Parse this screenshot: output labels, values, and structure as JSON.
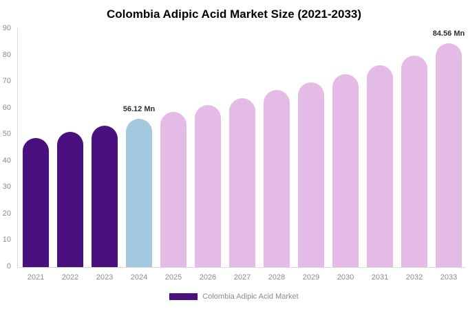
{
  "title": "Colombia Adipic Acid Market Size (2021-2033)",
  "legend": {
    "label": "Colombia Adipic Acid Market"
  },
  "colors": {
    "historical_bar": "#4B1080",
    "highlight_bar": "#A2C9DE",
    "forecast_bar": "#E3BBE6",
    "axis_line": "#D9D9D9",
    "tick_label": "#8C8C8C",
    "annotation_text": "#2F2F2F",
    "title_text": "#000000",
    "background": "#FFFFFF"
  },
  "chart_data": {
    "type": "bar",
    "title": "Colombia Adipic Acid Market Size (2021-2033)",
    "unit": "Mn",
    "categories": [
      "2021",
      "2022",
      "2023",
      "2024",
      "2025",
      "2026",
      "2027",
      "2028",
      "2029",
      "2030",
      "2031",
      "2032",
      "2033"
    ],
    "series": [
      {
        "name": "Colombia Adipic Acid Market",
        "values": [
          48.7,
          51.1,
          53.4,
          56.12,
          58.5,
          61.2,
          63.9,
          66.8,
          69.8,
          73.0,
          76.3,
          79.9,
          84.56
        ]
      }
    ],
    "bar_color_keys": [
      "historical_bar",
      "historical_bar",
      "historical_bar",
      "highlight_bar",
      "forecast_bar",
      "forecast_bar",
      "forecast_bar",
      "forecast_bar",
      "forecast_bar",
      "forecast_bar",
      "forecast_bar",
      "forecast_bar",
      "forecast_bar"
    ],
    "annotations": [
      {
        "category": "2024",
        "text": "56.12 Mn"
      },
      {
        "category": "2033",
        "text": "84.56 Mn"
      }
    ],
    "xlabel": "",
    "ylabel": "",
    "ylim": [
      0,
      90
    ],
    "yticks": [
      0,
      10,
      20,
      30,
      40,
      50,
      60,
      70,
      80,
      90
    ],
    "grid": false,
    "legend_position": "bottom"
  }
}
